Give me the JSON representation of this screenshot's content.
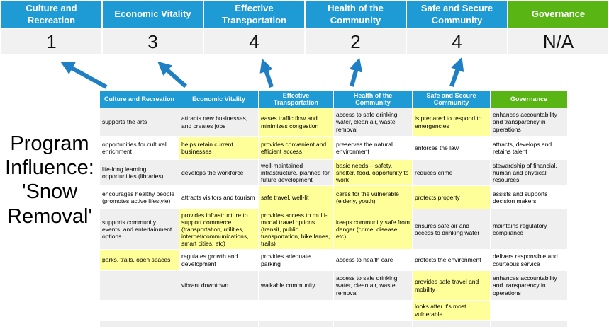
{
  "colors": {
    "header_blue": "#1e9ad5",
    "governance_green": "#58b514",
    "highlight_yellow": "#ffff99",
    "arrow_blue": "#1e7fc4"
  },
  "left_label": "Program\nInfluence:\n'Snow\nRemoval'",
  "pillars": [
    {
      "label": "Culture and Recreation",
      "score": "1"
    },
    {
      "label": "Economic Vitality",
      "score": "3"
    },
    {
      "label": "Effective Transportation",
      "score": "4"
    },
    {
      "label": "Health of the Community",
      "score": "2"
    },
    {
      "label": "Safe and Secure Community",
      "score": "4"
    },
    {
      "label": "Governance",
      "score": "N/A"
    }
  ],
  "matrix": {
    "headers": [
      "Culture and Recreation",
      "Economic Vitality",
      "Effective Transportation",
      "Health of the Community",
      "Safe and Secure Community",
      "Governance"
    ],
    "rows": [
      [
        {
          "t": "supports the arts",
          "hl": false
        },
        {
          "t": "attracts new businesses, and creates jobs",
          "hl": false
        },
        {
          "t": "eases traffic flow and minimizes congestion",
          "hl": true
        },
        {
          "t": "access to safe drinking water, clean air, waste removal",
          "hl": false
        },
        {
          "t": "is prepared to respond to emergencies",
          "hl": true
        },
        {
          "t": "enhances accountability and transparency in operations",
          "hl": false
        }
      ],
      [
        {
          "t": "opportunities for cultural enrichment",
          "hl": false
        },
        {
          "t": "helps retain current businesses",
          "hl": true
        },
        {
          "t": "provides convenient and efficient access",
          "hl": true
        },
        {
          "t": "preserves the natural environment",
          "hl": false
        },
        {
          "t": "enforces the law",
          "hl": false
        },
        {
          "t": "attracts, develops and retains talent",
          "hl": false
        }
      ],
      [
        {
          "t": "life-long learning opportunities (libraries)",
          "hl": false
        },
        {
          "t": "develops the workforce",
          "hl": false
        },
        {
          "t": "well-maintained infrastructure, planned for future development",
          "hl": false
        },
        {
          "t": "basic needs – safety, shelter, food, opportunity to work",
          "hl": true
        },
        {
          "t": "reduces crime",
          "hl": false
        },
        {
          "t": "stewardship of financial, human and physical resources",
          "hl": false
        }
      ],
      [
        {
          "t": "encourages healthy people (promotes active lifestyle)",
          "hl": false
        },
        {
          "t": "attracts visitors and tourism",
          "hl": false
        },
        {
          "t": "safe travel, well-lit",
          "hl": true
        },
        {
          "t": "cares for the vulnerable (elderly, youth)",
          "hl": true
        },
        {
          "t": "protects property",
          "hl": true
        },
        {
          "t": "assists and supports decision makers",
          "hl": false
        }
      ],
      [
        {
          "t": "supports community events, and entertainment options",
          "hl": false
        },
        {
          "t": "provides infrastructure to support commerce (transportation, utilities, internet/communications, smart cities, etc)",
          "hl": true
        },
        {
          "t": "provides access to multi-modal travel options (transit, public transportation, bike lanes, trails)",
          "hl": true
        },
        {
          "t": "keeps community safe from danger (crime, disease, etc)",
          "hl": true
        },
        {
          "t": "ensures safe air and access to drinking water",
          "hl": false
        },
        {
          "t": "maintains regulatory compliance",
          "hl": false
        }
      ],
      [
        {
          "t": "parks, trails, open spaces",
          "hl": true
        },
        {
          "t": "regulates growth and development",
          "hl": false
        },
        {
          "t": "provides adequate parking",
          "hl": false
        },
        {
          "t": "access to health care",
          "hl": false
        },
        {
          "t": "protects the environment",
          "hl": false
        },
        {
          "t": "delivers responsible and courteous service",
          "hl": false
        }
      ],
      [
        {
          "t": "",
          "hl": false
        },
        {
          "t": "vibrant downtown",
          "hl": false
        },
        {
          "t": "walkable community",
          "hl": false
        },
        {
          "t": "access to safe drinking water, clean air, waste removal",
          "hl": false
        },
        {
          "t": "provides safe travel and mobility",
          "hl": true
        },
        {
          "t": "enhances accountability and transparency in operations",
          "hl": false
        }
      ],
      [
        {
          "t": "",
          "hl": false
        },
        {
          "t": "",
          "hl": false
        },
        {
          "t": "",
          "hl": false
        },
        {
          "t": "",
          "hl": false
        },
        {
          "t": "looks after it's most vulnerable",
          "hl": true
        },
        {
          "t": "",
          "hl": false
        }
      ],
      [
        {
          "t": "",
          "hl": false
        },
        {
          "t": "",
          "hl": false
        },
        {
          "t": "",
          "hl": false
        },
        {
          "t": "",
          "hl": false
        },
        {
          "t": "",
          "hl": false
        },
        {
          "t": "",
          "hl": false
        }
      ]
    ]
  }
}
